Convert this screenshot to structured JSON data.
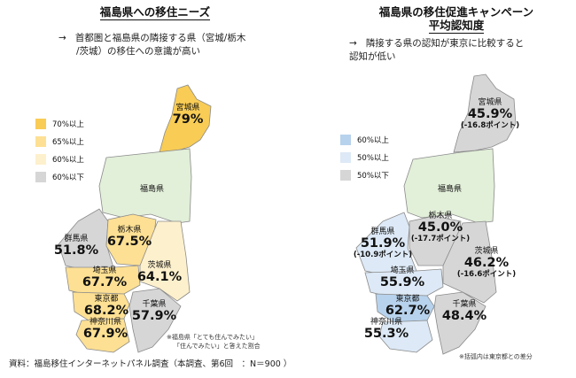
{
  "left_panel": {
    "title": "福島県への移住ニーズ",
    "note_arrow": "→",
    "note_line1": "首都圏と福島県の隣接する県（宮城/栃木",
    "note_line2": "/茨城）の移住への意識が高い",
    "legend": [
      {
        "label": "70%以上",
        "color": "#f8cc55"
      },
      {
        "label": "65%以上",
        "color": "#fde093"
      },
      {
        "label": "60%以上",
        "color": "#fdf0cc"
      },
      {
        "label": "60%以下",
        "color": "#d6d6d6"
      }
    ],
    "prefectures": {
      "miyagi": {
        "name": "宮城県",
        "value": "79%"
      },
      "fukushima": {
        "name": "福島県"
      },
      "tochigi": {
        "name": "栃木県",
        "value": "67.5%"
      },
      "gunma": {
        "name": "群馬県",
        "value": "51.8%"
      },
      "ibaraki": {
        "name": "茨城県",
        "value": "64.1%"
      },
      "saitama": {
        "name": "埼玉県",
        "value": "67.7%"
      },
      "tokyo": {
        "name": "東京都",
        "value": "68.2%"
      },
      "chiba": {
        "name": "千葉県",
        "value": "57.9%"
      },
      "kanagawa": {
        "name": "神奈川県",
        "value": "67.9%"
      }
    },
    "footnote_line1": "※福島県「とても住んでみたい」",
    "footnote_line2": "「住んでみたい」と答えた割合"
  },
  "right_panel": {
    "title_line1": "福島県の移住促進キャンペーン",
    "title_line2": "平均認知度",
    "note_arrow": "→",
    "note_line1": "隣接する県の認知が東京に比較すると",
    "note_line2": "認知が低い",
    "legend": [
      {
        "label": "60%以上",
        "color": "#b7d2ec"
      },
      {
        "label": "50%以上",
        "color": "#dde9f6"
      },
      {
        "label": "50%以下",
        "color": "#d6d6d6"
      }
    ],
    "prefectures": {
      "miyagi": {
        "name": "宮城県",
        "value": "45.9%",
        "diff": "(-16.8ポイント)"
      },
      "fukushima": {
        "name": "福島県"
      },
      "tochigi": {
        "name": "栃木県",
        "value": "45.0%",
        "diff": "(-17.7ポイント)"
      },
      "gunma": {
        "name": "群馬県",
        "value": "51.9%",
        "diff": "(-10.9ポイント)"
      },
      "ibaraki": {
        "name": "茨城県",
        "value": "46.2%",
        "diff": "(-16.6ポイント)"
      },
      "saitama": {
        "name": "埼玉県",
        "value": "55.9%"
      },
      "tokyo": {
        "name": "東京都",
        "value": "62.7%"
      },
      "chiba": {
        "name": "千葉県",
        "value": "48.4%"
      },
      "kanagawa": {
        "name": "神奈川県",
        "value": "55.3%"
      }
    },
    "footnote": "※括弧内は東京都との差分"
  },
  "source": "資料：福島移住インターネットパネル調査（本調査、第6回　：N＝900 ）",
  "colors": {
    "fukushima_fill": "#e2efd9",
    "outline": "#ffffff",
    "stroke": "#8a8a8a"
  }
}
